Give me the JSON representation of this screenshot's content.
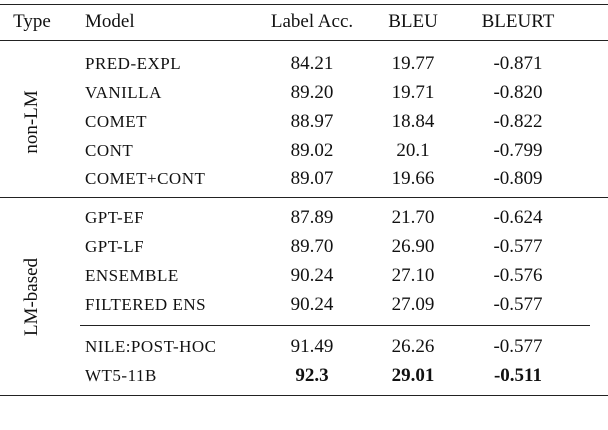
{
  "table": {
    "header": [
      "Type",
      "Model",
      "Label Acc.",
      "BLEU",
      "BLEURT"
    ],
    "groups": [
      {
        "type": "non-LM",
        "sections": [
          [
            {
              "cells": [
                "PRED-EXPL",
                "84.21",
                "19.77",
                "-0.871"
              ]
            },
            {
              "cells": [
                "VANILLA",
                "89.20",
                "19.71",
                "-0.820"
              ]
            },
            {
              "cells": [
                "COMET",
                "88.97",
                "18.84",
                "-0.822"
              ]
            },
            {
              "cells": [
                "CONT",
                "89.02",
                "20.1",
                "-0.799"
              ]
            },
            {
              "cells": [
                "COMET+CONT",
                "89.07",
                "19.66",
                "-0.809"
              ]
            }
          ]
        ]
      },
      {
        "type": "LM-based",
        "sections": [
          [
            {
              "cells": [
                "GPT-EF",
                "87.89",
                "21.70",
                "-0.624"
              ]
            },
            {
              "cells": [
                "GPT-LF",
                "89.70",
                "26.90",
                "-0.577"
              ]
            },
            {
              "cells": [
                "ENSEMBLE",
                "90.24",
                "27.10",
                "-0.576"
              ]
            },
            {
              "cells": [
                "FILTERED ENS",
                "90.24",
                "27.09",
                "-0.577"
              ]
            }
          ],
          [
            {
              "cells": [
                "NILE:POST-HOC",
                "91.49",
                "26.26",
                "-0.577"
              ]
            },
            {
              "cells": [
                "WT5-11B",
                "92.3",
                "29.01",
                "-0.511"
              ],
              "bold": true
            }
          ]
        ]
      }
    ]
  }
}
